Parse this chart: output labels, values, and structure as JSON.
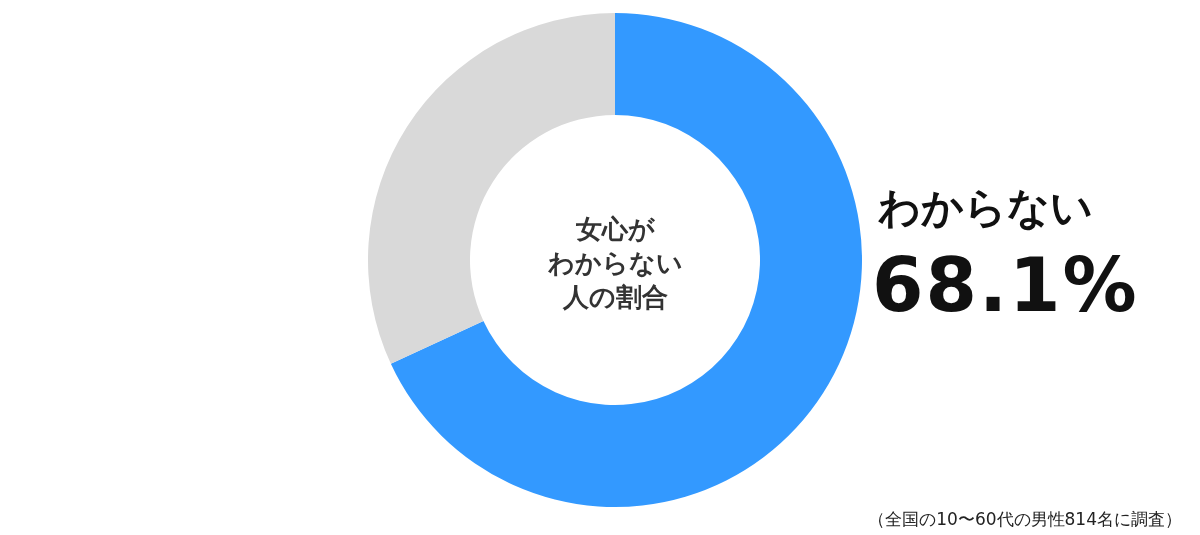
{
  "chart_data": {
    "type": "donut",
    "title": "女心がわからない人の割合",
    "categories": [
      "わからない",
      null
    ],
    "values": [
      68.1,
      31.9
    ],
    "colors": [
      "#3399ff",
      "#d9d9d9"
    ],
    "value_labels": [
      "68.1%",
      null
    ],
    "annotations": [
      "（全国の10〜60代の男性814名に調査）"
    ]
  }
}
